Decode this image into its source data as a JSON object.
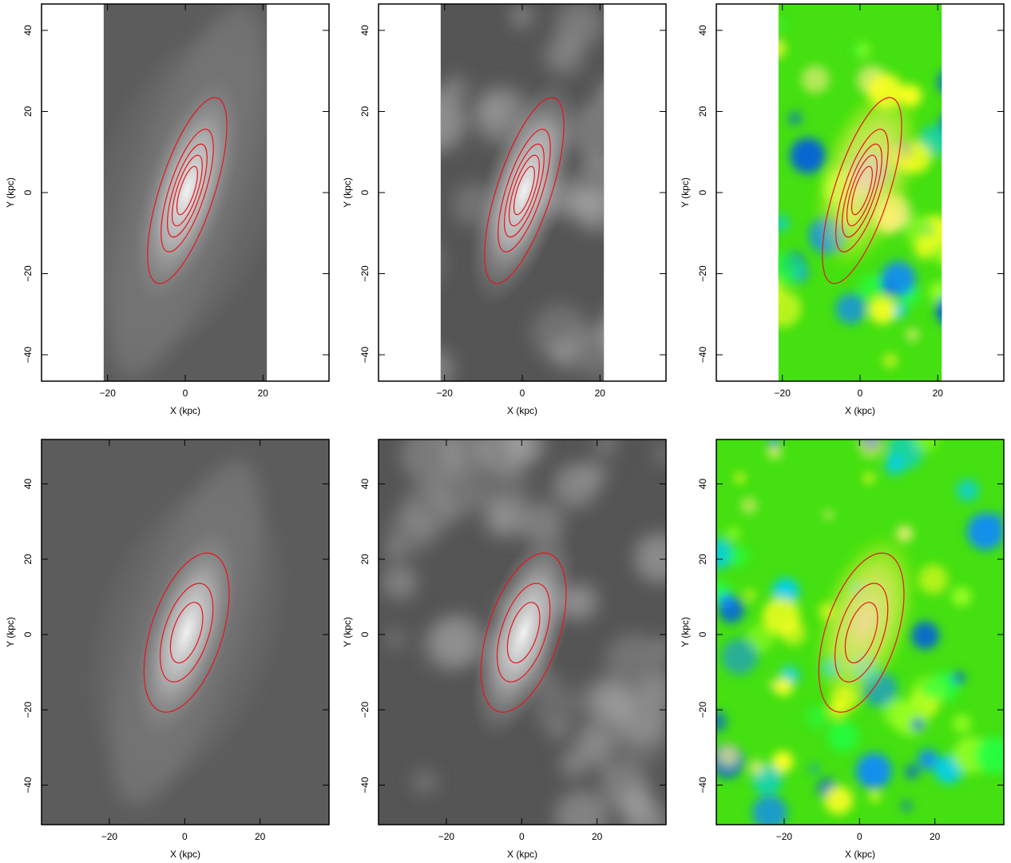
{
  "chart_data": [
    {
      "type": "image",
      "colormap": "gray",
      "smooth": true,
      "xlabel": "X (kpc)",
      "ylabel": "Y (kpc)",
      "xlim": [
        -37,
        37
      ],
      "ylim": [
        -46.5,
        46.5
      ],
      "image_xlim": [
        -21,
        21
      ],
      "xticks": [
        {
          "value": -20,
          "label": "−20"
        },
        0,
        20
      ],
      "yticks": [
        {
          "value": -40,
          "label": "−40"
        },
        {
          "value": -20,
          "label": "−20"
        },
        0,
        20,
        40
      ]
    },
    {
      "type": "image",
      "colormap": "gray",
      "smooth": false,
      "xlabel": "X (kpc)",
      "ylabel": "Y (kpc)",
      "xlim": [
        -37,
        37
      ],
      "ylim": [
        -46.5,
        46.5
      ],
      "image_xlim": [
        -21,
        21
      ],
      "xticks": [
        {
          "value": -20,
          "label": "−20"
        },
        0,
        20
      ],
      "yticks": [
        {
          "value": -40,
          "label": "−40"
        },
        {
          "value": -20,
          "label": "−20"
        },
        0,
        20,
        40
      ]
    },
    {
      "type": "image",
      "colormap": "rainbow",
      "smooth": false,
      "xlabel": "X (kpc)",
      "ylabel": "Y (kpc)",
      "xlim": [
        -37,
        37
      ],
      "ylim": [
        -46.5,
        46.5
      ],
      "image_xlim": [
        -21,
        21
      ],
      "xticks": [
        {
          "value": -20,
          "label": "−20"
        },
        0,
        20
      ],
      "yticks": [
        {
          "value": -40,
          "label": "−40"
        },
        {
          "value": -20,
          "label": "−20"
        },
        0,
        20,
        40
      ]
    },
    {
      "type": "image",
      "colormap": "gray",
      "smooth": true,
      "xlabel": "X (kpc)",
      "ylabel": "Y (kpc)",
      "xlim": [
        -38,
        38.3
      ],
      "ylim": [
        -50.5,
        51.8
      ],
      "xticks": [
        {
          "value": -20,
          "label": "−20"
        },
        0,
        20
      ],
      "yticks": [
        {
          "value": -40,
          "label": "−40"
        },
        {
          "value": -20,
          "label": "−20"
        },
        0,
        20,
        40
      ]
    },
    {
      "type": "image",
      "colormap": "gray",
      "smooth": false,
      "xlabel": "X (kpc)",
      "ylabel": "Y (kpc)",
      "xlim": [
        -38,
        38.3
      ],
      "ylim": [
        -50.5,
        51.8
      ],
      "xticks": [
        {
          "value": -20,
          "label": "−20"
        },
        0,
        20
      ],
      "yticks": [
        {
          "value": -40,
          "label": "−40"
        },
        {
          "value": -20,
          "label": "−20"
        },
        0,
        20,
        40
      ]
    },
    {
      "type": "image",
      "colormap": "rainbow",
      "smooth": false,
      "xlabel": "X (kpc)",
      "ylabel": "Y (kpc)",
      "xlim": [
        -38,
        38.3
      ],
      "ylim": [
        -50.5,
        51.8
      ],
      "xticks": [
        {
          "value": -20,
          "label": "−20"
        },
        0,
        20
      ],
      "yticks": [
        {
          "value": -40,
          "label": "−40"
        },
        {
          "value": -20,
          "label": "−20"
        },
        0,
        20,
        40
      ]
    }
  ]
}
